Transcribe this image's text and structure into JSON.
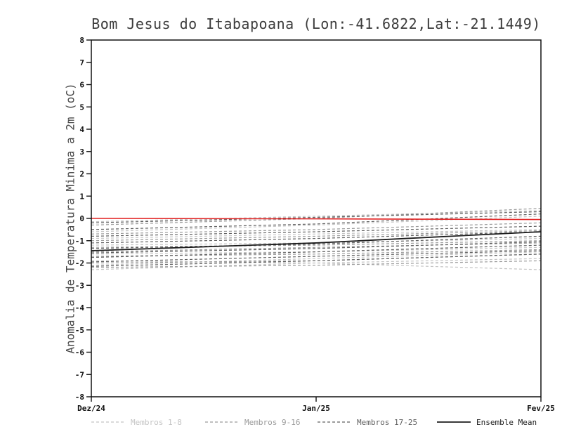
{
  "chart_data": {
    "type": "line",
    "title": "Bom Jesus do Itabapoana (Lon:-41.6822,Lat:-21.1449)",
    "xlabel": "",
    "ylabel": "Anomalia de Temperatura Minima a 2m (oC)",
    "ylim": [
      -8,
      8
    ],
    "ytick_step": 1,
    "x": [
      0,
      1,
      2
    ],
    "x_ticks": [
      "Dez/24",
      "Jan/25",
      "Fev/25"
    ],
    "grid": false,
    "legend_position": "bottom",
    "reference_line": {
      "name": "zero-anomaly-reference",
      "color": "#e22222",
      "values": [
        0,
        -0.02,
        -0.05
      ]
    },
    "groups": [
      {
        "name": "Membros 1-8",
        "color": "#c4c4c4",
        "dash": true,
        "members": [
          [
            -0.15,
            0.1,
            0.35
          ],
          [
            -0.6,
            -0.3,
            0.1
          ],
          [
            -0.9,
            -0.7,
            -0.5
          ],
          [
            -1.2,
            -1.1,
            -0.9
          ],
          [
            -1.6,
            -1.5,
            -1.3
          ],
          [
            -1.9,
            -2.0,
            -2.3
          ],
          [
            -2.1,
            -1.8,
            -1.5
          ],
          [
            -2.3,
            -2.0,
            -1.8
          ]
        ]
      },
      {
        "name": "Membros 9-16",
        "color": "#9b9b9b",
        "dash": true,
        "members": [
          [
            -0.3,
            0.0,
            0.45
          ],
          [
            -0.7,
            -0.5,
            -0.2
          ],
          [
            -1.0,
            -0.8,
            -0.55
          ],
          [
            -1.3,
            -1.2,
            -1.0
          ],
          [
            -1.5,
            -1.3,
            -1.1
          ],
          [
            -1.7,
            -1.6,
            -1.4
          ],
          [
            -2.0,
            -1.9,
            -1.6
          ],
          [
            -2.2,
            -2.1,
            -1.9
          ]
        ]
      },
      {
        "name": "Membros 17-25",
        "color": "#606060",
        "dash": true,
        "members": [
          [
            -0.2,
            0.05,
            0.3
          ],
          [
            -0.5,
            -0.25,
            0.2
          ],
          [
            -0.8,
            -0.6,
            -0.35
          ],
          [
            -1.1,
            -0.9,
            -0.6
          ],
          [
            -1.35,
            -1.15,
            -0.8
          ],
          [
            -1.55,
            -1.35,
            -1.05
          ],
          [
            -1.75,
            -1.5,
            -1.2
          ],
          [
            -1.95,
            -1.7,
            -1.45
          ],
          [
            -2.15,
            -1.9,
            -1.6
          ]
        ]
      }
    ],
    "mean": {
      "name": "Ensemble Mean",
      "color": "#1c1c1c",
      "values": [
        -1.45,
        -1.1,
        -0.6
      ]
    },
    "legend": [
      {
        "label": "Membros 1-8",
        "color": "#c4c4c4",
        "dash": true
      },
      {
        "label": "Membros 9-16",
        "color": "#9b9b9b",
        "dash": true
      },
      {
        "label": "Membros 17-25",
        "color": "#606060",
        "dash": true
      },
      {
        "label": "Ensemble Mean",
        "color": "#1c1c1c",
        "dash": false
      }
    ]
  }
}
